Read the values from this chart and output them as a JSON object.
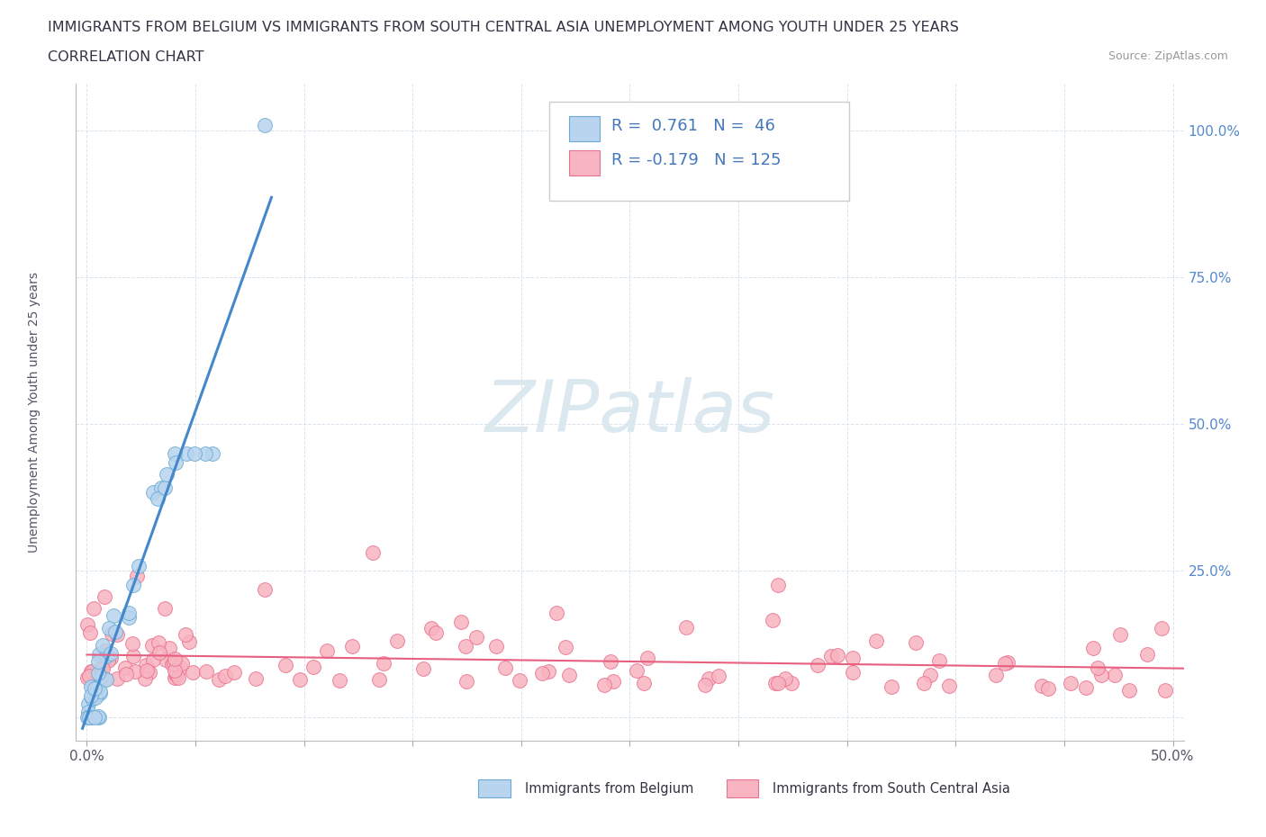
{
  "title_line1": "IMMIGRANTS FROM BELGIUM VS IMMIGRANTS FROM SOUTH CENTRAL ASIA UNEMPLOYMENT AMONG YOUTH UNDER 25 YEARS",
  "title_line2": "CORRELATION CHART",
  "source_text": "Source: ZipAtlas.com",
  "ylabel": "Unemployment Among Youth under 25 years",
  "ytick_positions": [
    0.0,
    0.25,
    0.5,
    0.75,
    1.0
  ],
  "ytick_labels": [
    "",
    "25.0%",
    "50.0%",
    "75.0%",
    "100.0%"
  ],
  "xtick_positions": [
    0.0,
    0.05,
    0.1,
    0.15,
    0.2,
    0.25,
    0.3,
    0.35,
    0.4,
    0.45,
    0.5
  ],
  "belgium_R": 0.761,
  "belgium_N": 46,
  "sca_R": -0.179,
  "sca_N": 125,
  "belgium_fill_color": "#b8d4ee",
  "sca_fill_color": "#f8b4c0",
  "belgium_edge_color": "#6aaad4",
  "sca_edge_color": "#e87090",
  "belgium_line_color": "#4488cc",
  "sca_line_color": "#e86080",
  "legend_text_color": "#4478bb",
  "yaxis_tick_color": "#5588cc",
  "watermark_color": "#dce8f0",
  "background_color": "#ffffff",
  "grid_color": "#d8e4ee",
  "title_fontsize": 11.5,
  "subtitle_fontsize": 11.5,
  "axis_label_fontsize": 10,
  "tick_fontsize": 11,
  "legend_fontsize": 13
}
